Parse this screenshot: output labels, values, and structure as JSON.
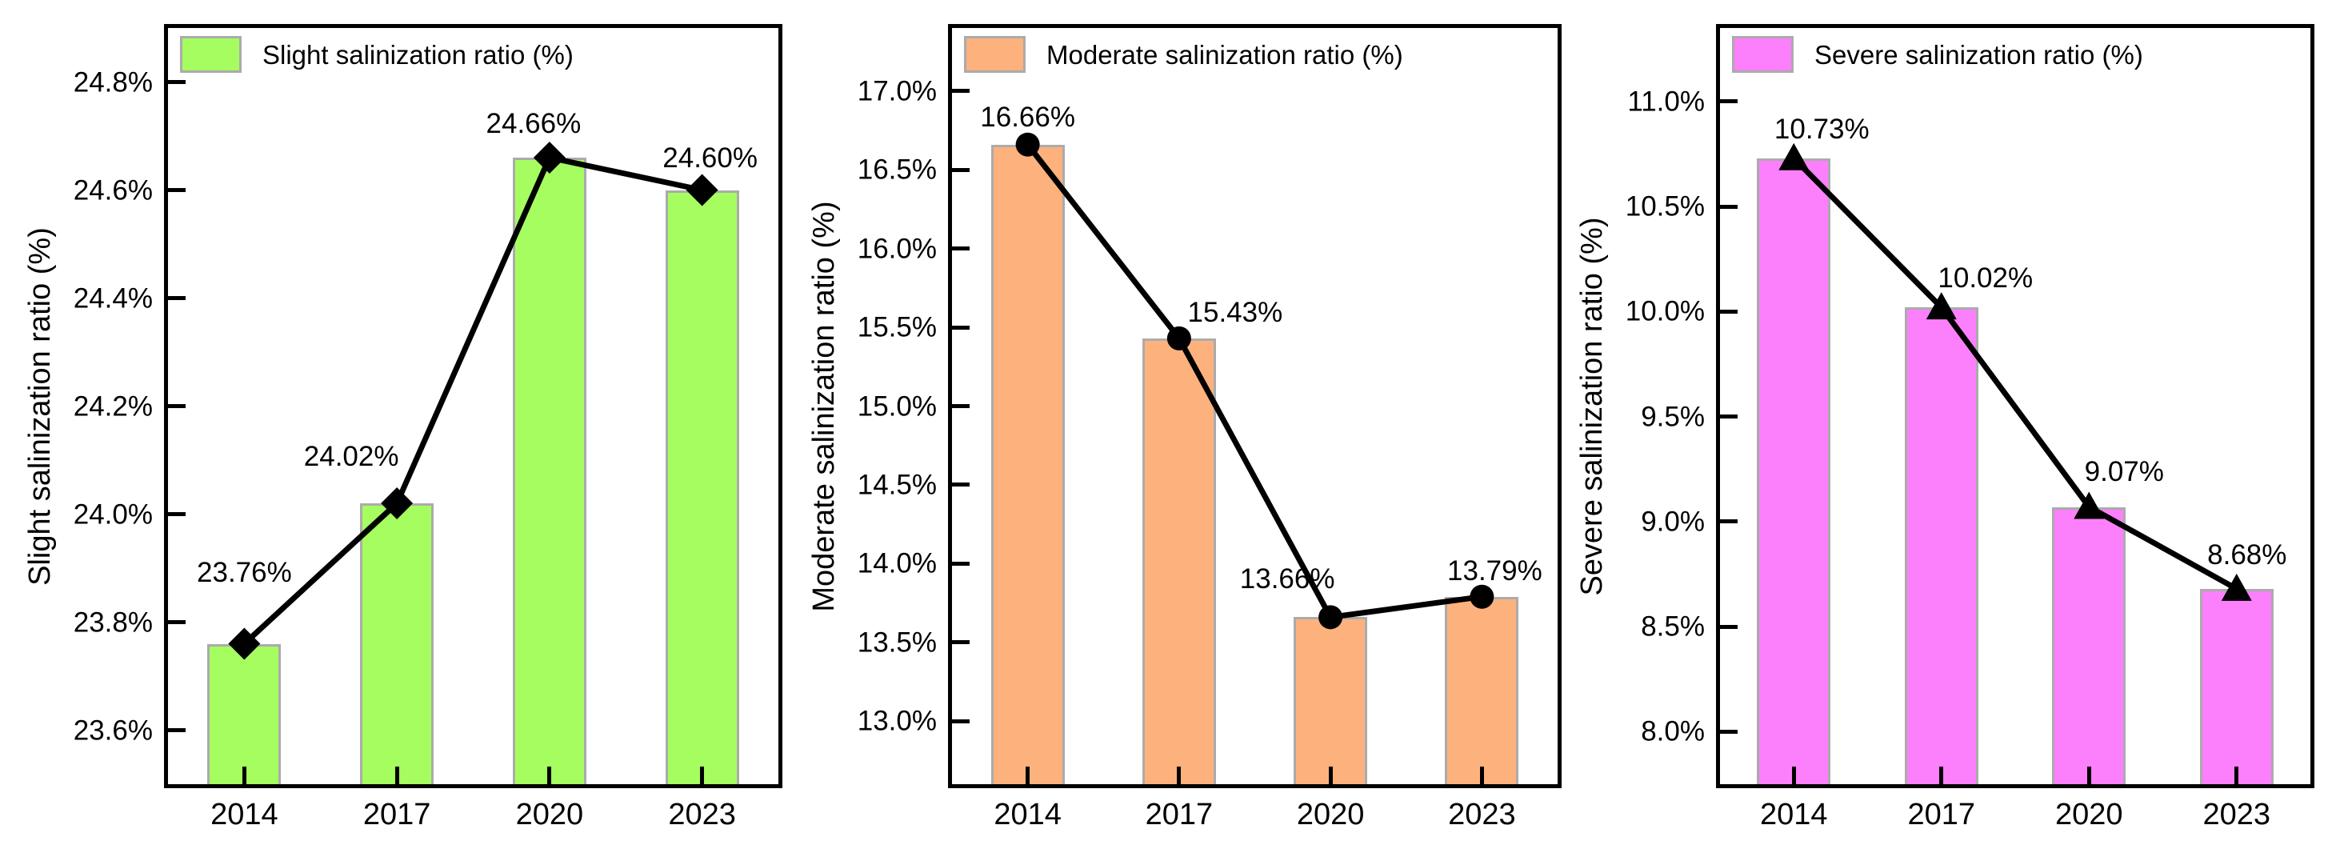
{
  "figure_name": "salinization-ratio-charts",
  "background_color": "#ffffff",
  "axis_color": "#000000",
  "bar_border_color": "#ababab",
  "chart_data": [
    {
      "type": "bar",
      "overlay": "line",
      "legend": "Slight salinization ratio (%)",
      "ylabel": "Slight salinization ratio (%)",
      "xlabel": "",
      "categories": [
        "2014",
        "2017",
        "2020",
        "2023"
      ],
      "values": [
        23.76,
        24.02,
        24.66,
        24.6
      ],
      "point_labels": [
        "23.76%",
        "24.02%",
        "24.66%",
        "24.60%"
      ],
      "ytick_values": [
        24.8,
        24.6,
        24.4,
        24.2,
        24.0,
        23.8,
        23.6
      ],
      "ytick_labels": [
        "24.8%",
        "24.6%",
        "24.4%",
        "24.2%",
        "24.0%",
        "23.8%",
        "23.6%"
      ],
      "ylim": [
        23.5,
        24.9
      ],
      "bar_color": "#a5fd60",
      "line_color": "#000000",
      "marker": "diamond",
      "marker_color": "#000000",
      "legend_position": "top-left",
      "grid": false
    },
    {
      "type": "bar",
      "overlay": "line",
      "legend": "Moderate salinization ratio (%)",
      "ylabel": "Moderate salinization ratio (%)",
      "xlabel": "",
      "categories": [
        "2014",
        "2017",
        "2020",
        "2023"
      ],
      "values": [
        16.66,
        15.43,
        13.66,
        13.79
      ],
      "point_labels": [
        "16.66%",
        "15.43%",
        "13.66%",
        "13.79%"
      ],
      "ytick_values": [
        17.0,
        16.5,
        16.0,
        15.5,
        15.0,
        14.5,
        14.0,
        13.5,
        13.0
      ],
      "ytick_labels": [
        "17.0%",
        "16.5%",
        "16.0%",
        "15.5%",
        "15.0%",
        "14.5%",
        "14.0%",
        "13.5%",
        "13.0%"
      ],
      "ylim": [
        12.6,
        17.4
      ],
      "bar_color": "#fdb27d",
      "line_color": "#000000",
      "marker": "circle",
      "marker_color": "#000000",
      "legend_position": "top-left",
      "grid": false
    },
    {
      "type": "bar",
      "overlay": "line",
      "legend": "Severe salinization ratio (%)",
      "ylabel": "Severe salinization ratio (%)",
      "xlabel": "",
      "categories": [
        "2014",
        "2017",
        "2020",
        "2023"
      ],
      "values": [
        10.73,
        10.02,
        9.07,
        8.68
      ],
      "point_labels": [
        "10.73%",
        "10.02%",
        "9.07%",
        "8.68%"
      ],
      "ytick_values": [
        11.0,
        10.5,
        10.0,
        9.5,
        9.0,
        8.5,
        8.0
      ],
      "ytick_labels": [
        "11.0%",
        "10.5%",
        "10.0%",
        "9.5%",
        "9.0%",
        "8.5%",
        "8.0%"
      ],
      "ylim": [
        7.75,
        11.35
      ],
      "bar_color": "#fc7ffc",
      "line_color": "#000000",
      "marker": "triangle",
      "marker_color": "#000000",
      "legend_position": "top-left",
      "grid": false
    }
  ]
}
